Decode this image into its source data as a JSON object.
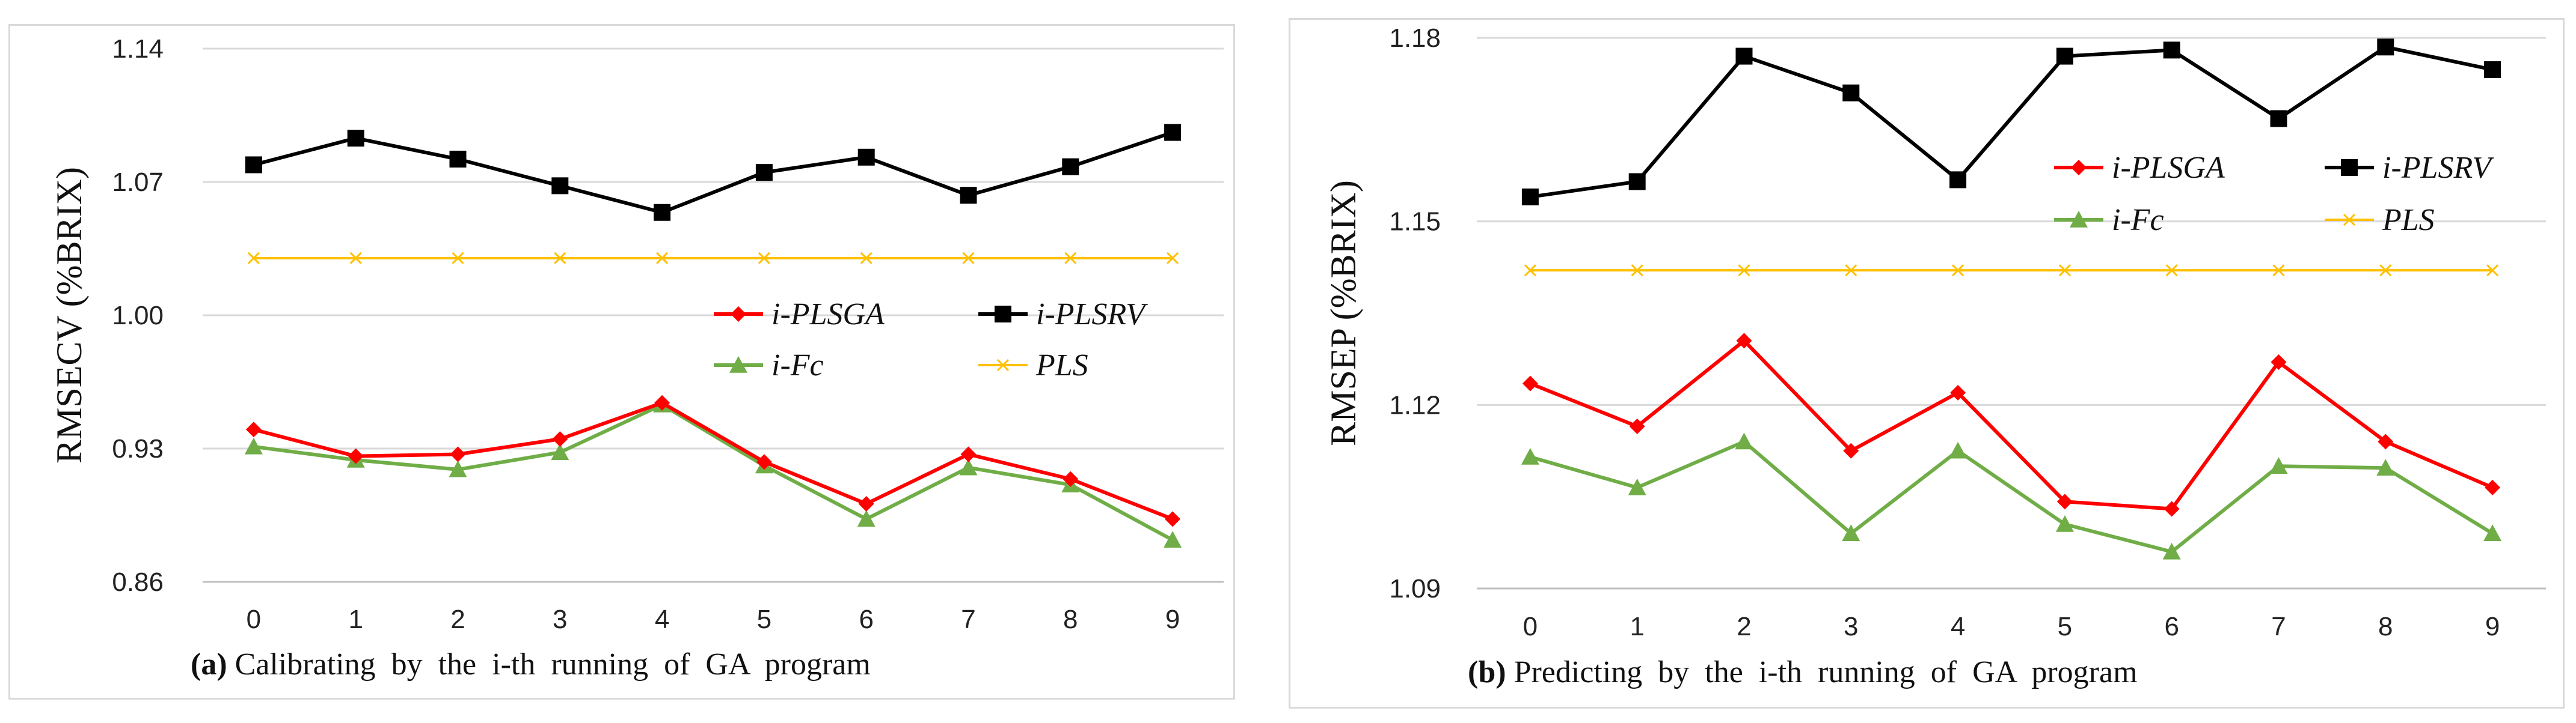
{
  "chart_data": [
    {
      "type": "line",
      "panel_id": "a",
      "caption_tag": "(a)",
      "caption": "Calibrating  by  the  i-th  running  of  GA  program",
      "ylabel": "RMSECV  (%BRIX)",
      "xlabel": "",
      "categories": [
        "0",
        "1",
        "2",
        "3",
        "4",
        "5",
        "6",
        "7",
        "8",
        "9"
      ],
      "ylim": [
        0.86,
        1.14
      ],
      "yticks": [
        "0.86",
        "0.93",
        "1.00",
        "1.07",
        "1.14"
      ],
      "grid": true,
      "legend_position": "center-right",
      "series": [
        {
          "name": "i-PLSGA",
          "color": "#ff0000",
          "marker": "diamond",
          "values": [
            0.94,
            0.926,
            0.927,
            0.935,
            0.954,
            0.923,
            0.901,
            0.927,
            0.914,
            0.893
          ]
        },
        {
          "name": "i-PLSRV",
          "color": "#000000",
          "marker": "square",
          "values": [
            1.079,
            1.093,
            1.082,
            1.068,
            1.054,
            1.075,
            1.083,
            1.063,
            1.078,
            1.096
          ]
        },
        {
          "name": "i-Fc",
          "color": "#70ad47",
          "marker": "triangle",
          "values": [
            0.931,
            0.924,
            0.919,
            0.928,
            0.953,
            0.921,
            0.893,
            0.92,
            0.911,
            0.882
          ]
        },
        {
          "name": "PLS",
          "color": "#ffc000",
          "marker": "cross",
          "values": [
            1.03,
            1.03,
            1.03,
            1.03,
            1.03,
            1.03,
            1.03,
            1.03,
            1.03,
            1.03
          ]
        }
      ]
    },
    {
      "type": "line",
      "panel_id": "b",
      "caption_tag": "(b)",
      "caption": "Predicting  by  the  i-th  running  of  GA  program",
      "ylabel": "RMSEP  (%BRIX)",
      "xlabel": "",
      "categories": [
        "0",
        "1",
        "2",
        "3",
        "4",
        "5",
        "6",
        "7",
        "8",
        "9"
      ],
      "ylim": [
        1.09,
        1.18
      ],
      "yticks": [
        "1.09",
        "1.12",
        "1.15",
        "1.18"
      ],
      "grid": true,
      "legend_position": "upper-right",
      "series": [
        {
          "name": "i-PLSGA",
          "color": "#ff0000",
          "marker": "diamond",
          "values": [
            1.1235,
            1.1165,
            1.1305,
            1.1125,
            1.122,
            1.1042,
            1.103,
            1.127,
            1.114,
            1.1065
          ]
        },
        {
          "name": "i-PLSRV",
          "color": "#000000",
          "marker": "square",
          "values": [
            1.154,
            1.1565,
            1.177,
            1.171,
            1.1568,
            1.177,
            1.178,
            1.1668,
            1.1785,
            1.1748
          ]
        },
        {
          "name": "i-Fc",
          "color": "#70ad47",
          "marker": "triangle",
          "values": [
            1.1115,
            1.1065,
            1.114,
            1.099,
            1.1125,
            1.1005,
            1.096,
            1.11,
            1.1097,
            1.099
          ]
        },
        {
          "name": "PLS",
          "color": "#ffc000",
          "marker": "cross",
          "values": [
            1.142,
            1.142,
            1.142,
            1.142,
            1.142,
            1.142,
            1.142,
            1.142,
            1.142,
            1.142
          ]
        }
      ]
    }
  ]
}
